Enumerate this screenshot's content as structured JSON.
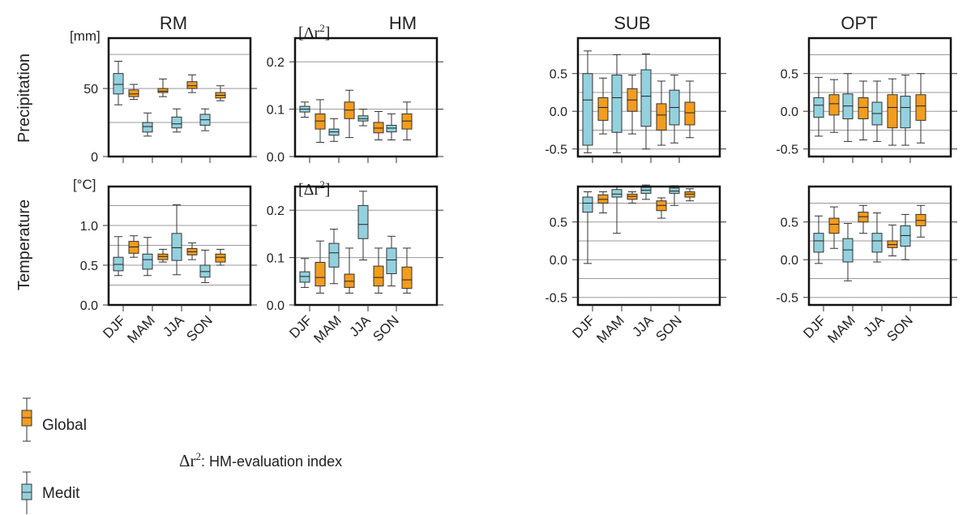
{
  "panel_titles": [
    "RM",
    "HM",
    "SUB",
    "OPT"
  ],
  "row_labels": [
    "Precipitation",
    "Temperature"
  ],
  "units": {
    "precip_rm": "[mm]",
    "temp_rm": "[°C]",
    "hm_symbol": "[Δr",
    "hm_sup": "2",
    "hm_close": "]"
  },
  "legend": {
    "global": "Global",
    "medit": "Medit"
  },
  "annotation": {
    "symbol": "Δr",
    "sup": "2",
    "text": ": HM-evaluation index"
  },
  "colors": {
    "Global": "#f39c1e",
    "Medit": "#93d1de"
  },
  "chart_data": [
    {
      "type": "box",
      "row": "Precipitation",
      "panel": "RM",
      "categories": [
        "DJF",
        "MAM",
        "JJA",
        "SON"
      ],
      "ylim": [
        0,
        87
      ],
      "yticks": [
        0,
        50
      ],
      "ytick_labels": [
        "0",
        "50"
      ],
      "gridlines": [
        25,
        50,
        75
      ],
      "series": [
        {
          "name": "Medit",
          "boxes": [
            [
              38,
              46,
              53,
              61,
              70
            ],
            [
              15,
              18,
              22,
              25,
              32
            ],
            [
              18,
              21,
              24,
              29,
              35
            ],
            [
              19,
              23,
              27,
              31,
              35
            ]
          ]
        },
        {
          "name": "Global",
          "boxes": [
            [
              42,
              44,
              46,
              49,
              53
            ],
            [
              44,
              47,
              48,
              50,
              57
            ],
            [
              47,
              50,
              52,
              55,
              60
            ],
            [
              41,
              43,
              45,
              47,
              52
            ]
          ]
        }
      ]
    },
    {
      "type": "box",
      "row": "Precipitation",
      "panel": "HM",
      "categories": [
        "DJF",
        "MAM",
        "JJA",
        "SON"
      ],
      "ylim": [
        0,
        0.25
      ],
      "yticks": [
        0,
        0.1,
        0.2
      ],
      "ytick_labels": [
        "0.0",
        "0.1",
        "0.2"
      ],
      "gridlines": [
        0.1,
        0.2
      ],
      "series": [
        {
          "name": "Medit",
          "boxes": [
            [
              0.083,
              0.094,
              0.1,
              0.106,
              0.115
            ],
            [
              0.032,
              0.045,
              0.052,
              0.058,
              0.08
            ],
            [
              0.065,
              0.075,
              0.08,
              0.086,
              0.1
            ],
            [
              0.035,
              0.052,
              0.06,
              0.066,
              0.09
            ]
          ]
        },
        {
          "name": "Global",
          "boxes": [
            [
              0.03,
              0.058,
              0.075,
              0.09,
              0.12
            ],
            [
              0.04,
              0.08,
              0.098,
              0.115,
              0.14
            ],
            [
              0.035,
              0.05,
              0.06,
              0.072,
              0.095
            ],
            [
              0.035,
              0.058,
              0.075,
              0.09,
              0.115
            ]
          ]
        }
      ]
    },
    {
      "type": "box",
      "row": "Precipitation",
      "panel": "SUB",
      "categories": [
        "DJF",
        "MAM",
        "JJA",
        "SON"
      ],
      "ylim": [
        -0.6,
        0.97
      ],
      "yticks": [
        -0.5,
        0,
        0.5
      ],
      "ytick_labels": [
        "-0.5",
        "0.0",
        "0.5"
      ],
      "gridlines": [
        -0.5,
        -0.25,
        0,
        0.25,
        0.5,
        0.75
      ],
      "series": [
        {
          "name": "Medit",
          "boxes": [
            [
              -0.55,
              -0.45,
              0.15,
              0.5,
              0.8
            ],
            [
              -0.55,
              -0.28,
              0.18,
              0.48,
              0.75
            ],
            [
              -0.5,
              -0.2,
              0.2,
              0.55,
              0.76
            ],
            [
              -0.42,
              -0.18,
              0.05,
              0.28,
              0.48
            ]
          ]
        },
        {
          "name": "Global",
          "boxes": [
            [
              -0.3,
              -0.12,
              0.05,
              0.18,
              0.44
            ],
            [
              -0.3,
              0,
              0.15,
              0.3,
              0.48
            ],
            [
              -0.45,
              -0.25,
              -0.05,
              0.1,
              0.4
            ],
            [
              -0.35,
              -0.18,
              -0.02,
              0.12,
              0.4
            ]
          ]
        }
      ]
    },
    {
      "type": "box",
      "row": "Precipitation",
      "panel": "OPT",
      "categories": [
        "DJF",
        "MAM",
        "JJA",
        "SON"
      ],
      "ylim": [
        -0.6,
        0.97
      ],
      "yticks": [
        -0.5,
        0,
        0.5
      ],
      "ytick_labels": [
        "-0.5",
        "0.0",
        "0.5"
      ],
      "gridlines": [
        -0.5,
        -0.25,
        0,
        0.25,
        0.5,
        0.75
      ],
      "series": [
        {
          "name": "Medit",
          "boxes": [
            [
              -0.33,
              -0.08,
              0.08,
              0.18,
              0.45
            ],
            [
              -0.4,
              -0.1,
              0.07,
              0.23,
              0.5
            ],
            [
              -0.4,
              -0.18,
              -0.03,
              0.12,
              0.4
            ],
            [
              -0.45,
              -0.22,
              0.05,
              0.2,
              0.48
            ]
          ]
        },
        {
          "name": "Global",
          "boxes": [
            [
              -0.28,
              -0.05,
              0.1,
              0.22,
              0.42
            ],
            [
              -0.38,
              -0.1,
              0.05,
              0.18,
              0.4
            ],
            [
              -0.45,
              -0.22,
              0.05,
              0.22,
              0.43
            ],
            [
              -0.42,
              -0.12,
              0.07,
              0.22,
              0.5
            ]
          ]
        }
      ]
    },
    {
      "type": "box",
      "row": "Temperature",
      "panel": "RM",
      "categories": [
        "DJF",
        "MAM",
        "JJA",
        "SON"
      ],
      "ylim": [
        0,
        1.49
      ],
      "yticks": [
        0,
        0.5,
        1.0
      ],
      "ytick_labels": [
        "0.0",
        "0.5",
        "1.0"
      ],
      "gridlines": [
        0.25,
        0.5,
        0.75,
        1.0,
        1.25
      ],
      "series": [
        {
          "name": "Medit",
          "boxes": [
            [
              0.37,
              0.43,
              0.51,
              0.6,
              0.86
            ],
            [
              0.37,
              0.45,
              0.57,
              0.64,
              0.85
            ],
            [
              0.38,
              0.56,
              0.72,
              0.9,
              1.26
            ],
            [
              0.28,
              0.35,
              0.42,
              0.5,
              0.69
            ]
          ]
        },
        {
          "name": "Global",
          "boxes": [
            [
              0.6,
              0.65,
              0.73,
              0.8,
              0.87
            ],
            [
              0.54,
              0.57,
              0.61,
              0.64,
              0.7
            ],
            [
              0.57,
              0.63,
              0.67,
              0.71,
              0.78
            ],
            [
              0.5,
              0.54,
              0.6,
              0.64,
              0.7
            ]
          ]
        }
      ]
    },
    {
      "type": "box",
      "row": "Temperature",
      "panel": "HM",
      "categories": [
        "DJF",
        "MAM",
        "JJA",
        "SON"
      ],
      "ylim": [
        0,
        0.25
      ],
      "yticks": [
        0,
        0.1,
        0.2
      ],
      "ytick_labels": [
        "0.0",
        "0.1",
        "0.2"
      ],
      "gridlines": [
        0.1,
        0.2
      ],
      "series": [
        {
          "name": "Medit",
          "boxes": [
            [
              0.037,
              0.048,
              0.06,
              0.07,
              0.098
            ],
            [
              0.045,
              0.08,
              0.11,
              0.13,
              0.16
            ],
            [
              0.095,
              0.14,
              0.17,
              0.21,
              0.24
            ],
            [
              0.04,
              0.066,
              0.095,
              0.12,
              0.145
            ]
          ]
        },
        {
          "name": "Global",
          "boxes": [
            [
              0.025,
              0.04,
              0.058,
              0.09,
              0.135
            ],
            [
              0.025,
              0.037,
              0.05,
              0.065,
              0.12
            ],
            [
              0.025,
              0.04,
              0.058,
              0.082,
              0.12
            ],
            [
              0.025,
              0.035,
              0.053,
              0.08,
              0.12
            ]
          ]
        }
      ]
    },
    {
      "type": "box",
      "row": "Temperature",
      "panel": "SUB",
      "categories": [
        "DJF",
        "MAM",
        "JJA",
        "SON"
      ],
      "ylim": [
        -0.6,
        0.97
      ],
      "yticks": [
        -0.5,
        0,
        0.5
      ],
      "ytick_labels": [
        "-0.5",
        "0.0",
        "0.5"
      ],
      "gridlines": [
        -0.5,
        -0.25,
        0,
        0.25,
        0.5,
        0.75
      ],
      "series": [
        {
          "name": "Medit",
          "boxes": [
            [
              -0.05,
              0.63,
              0.75,
              0.83,
              0.9
            ],
            [
              0.35,
              0.83,
              0.87,
              0.93,
              0.97
            ],
            [
              0.8,
              0.88,
              0.92,
              0.96,
              0.99
            ],
            [
              0.72,
              0.88,
              0.91,
              0.95,
              0.98
            ]
          ]
        },
        {
          "name": "Global",
          "boxes": [
            [
              0.62,
              0.75,
              0.8,
              0.86,
              0.9
            ],
            [
              0.75,
              0.8,
              0.84,
              0.87,
              0.9
            ],
            [
              0.55,
              0.65,
              0.72,
              0.78,
              0.82
            ],
            [
              0.78,
              0.83,
              0.87,
              0.9,
              0.94
            ]
          ]
        }
      ]
    },
    {
      "type": "box",
      "row": "Temperature",
      "panel": "OPT",
      "categories": [
        "DJF",
        "MAM",
        "JJA",
        "SON"
      ],
      "ylim": [
        -0.6,
        0.97
      ],
      "yticks": [
        -0.5,
        0,
        0.5
      ],
      "ytick_labels": [
        "-0.5",
        "0.0",
        "0.5"
      ],
      "gridlines": [
        -0.5,
        -0.25,
        0,
        0.25,
        0.5,
        0.75
      ],
      "series": [
        {
          "name": "Medit",
          "boxes": [
            [
              -0.05,
              0.1,
              0.25,
              0.35,
              0.58
            ],
            [
              -0.28,
              -0.03,
              0.13,
              0.28,
              0.48
            ],
            [
              -0.03,
              0.1,
              0.25,
              0.35,
              0.62
            ],
            [
              0,
              0.18,
              0.32,
              0.45,
              0.6
            ]
          ]
        },
        {
          "name": "Global",
          "boxes": [
            [
              0.15,
              0.35,
              0.47,
              0.55,
              0.7
            ],
            [
              0.35,
              0.5,
              0.57,
              0.63,
              0.72
            ],
            [
              0.05,
              0.16,
              0.2,
              0.25,
              0.46
            ],
            [
              0.3,
              0.45,
              0.52,
              0.6,
              0.72
            ]
          ]
        }
      ]
    }
  ]
}
